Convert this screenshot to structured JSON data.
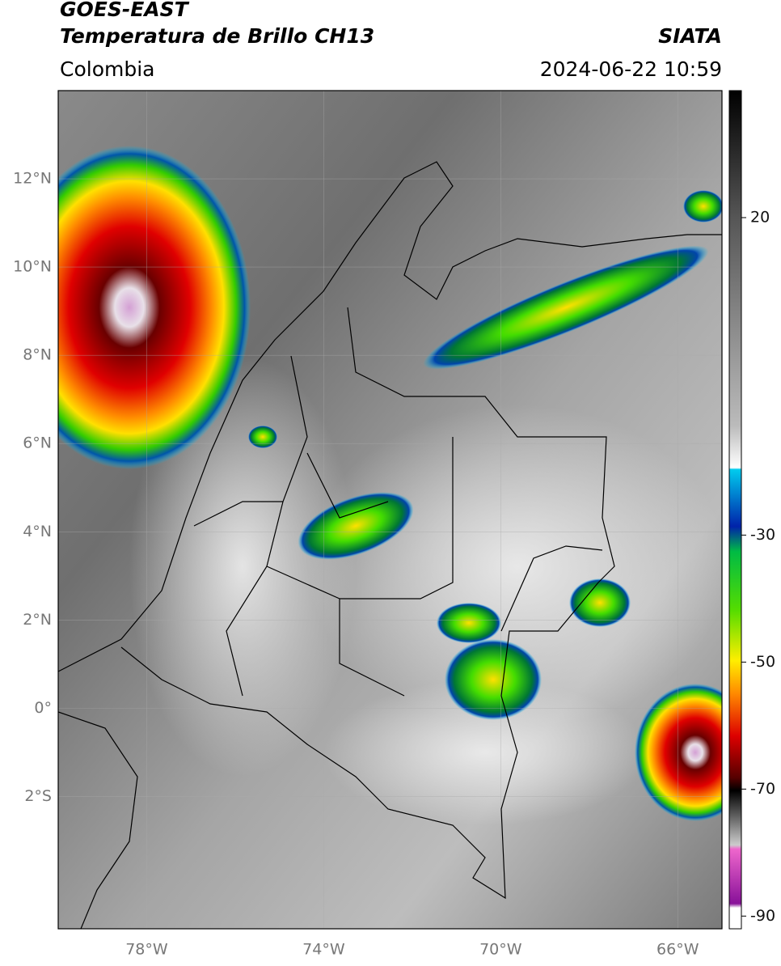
{
  "header": {
    "title": "GOES-EAST",
    "subtitle": "Temperatura de Brillo CH13",
    "source": "SIATA",
    "region": "Colombia",
    "datetime": "2024-06-22 10:59"
  },
  "map": {
    "lon_range": [
      -80,
      -65
    ],
    "lat_range": [
      -5,
      14
    ],
    "lat_ticks": [
      {
        "value": 12,
        "label": "12°N"
      },
      {
        "value": 10,
        "label": "10°N"
      },
      {
        "value": 8,
        "label": "8°N"
      },
      {
        "value": 6,
        "label": "6°N"
      },
      {
        "value": 4,
        "label": "4°N"
      },
      {
        "value": 2,
        "label": "2°N"
      },
      {
        "value": 0,
        "label": "0°"
      },
      {
        "value": -2,
        "label": "2°S"
      }
    ],
    "lon_ticks": [
      {
        "value": -78,
        "label": "78°W"
      },
      {
        "value": -74,
        "label": "74°W"
      },
      {
        "value": -70,
        "label": "70°W"
      },
      {
        "value": -66,
        "label": "66°W"
      }
    ]
  },
  "colorbar": {
    "range": [
      40,
      -92
    ],
    "ticks": [
      20,
      -30,
      -50,
      -70,
      -90
    ]
  }
}
